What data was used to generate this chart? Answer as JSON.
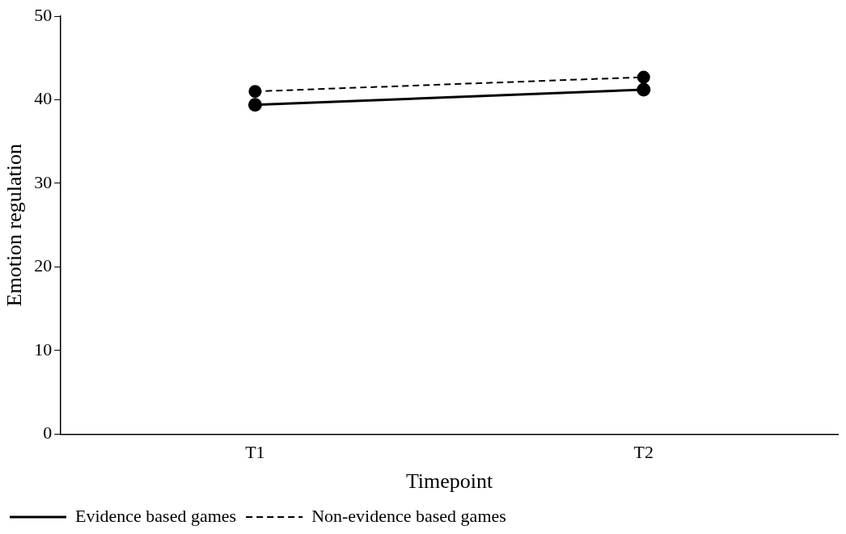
{
  "chart_data": {
    "type": "line",
    "xlabel": "Timepoint",
    "ylabel": "Emotion regulation",
    "categories": [
      "T1",
      "T2"
    ],
    "series": [
      {
        "name": "Evidence based games",
        "color": "#000000",
        "values": [
          39.4,
          41.2
        ],
        "line_style": "solid"
      },
      {
        "name": "Non-evidence based games",
        "color": "#000000",
        "values": [
          41.0,
          42.7
        ],
        "line_style": "dashed"
      }
    ],
    "ylim": [
      0,
      50
    ],
    "yticks": [
      0,
      10,
      20,
      30,
      40,
      50
    ],
    "grid": false,
    "legend": "bottom left",
    "marker": "circle"
  }
}
